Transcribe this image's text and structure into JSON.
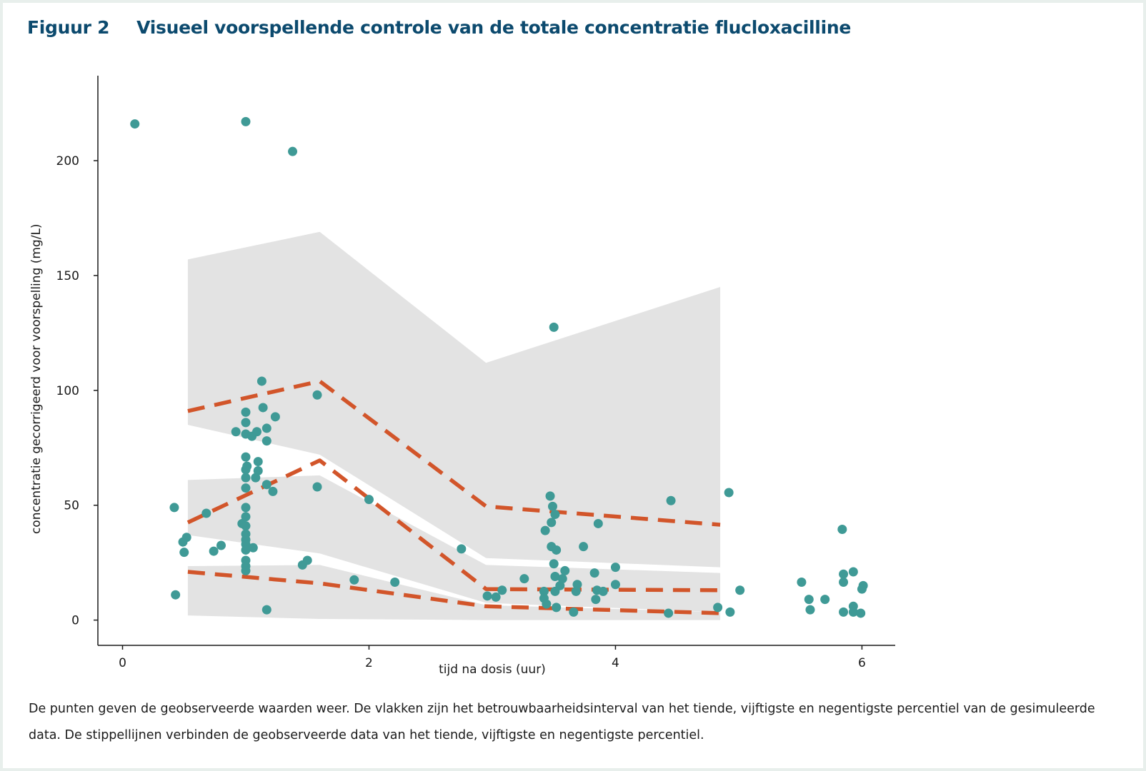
{
  "figure": {
    "label": "Figuur 2",
    "title": "Visueel voorspellende controle van de totale concentratie flucloxacilline",
    "caption": "De punten geven de geobserveerde waarden weer. De vlakken zijn het betrouwbaarheidsinterval van het tiende, vijftigste en negentigste percentiel van de gesimuleerde data. De stippellijnen verbinden de geobserveerde data van het tiende, vijftigste en negentigste percentiel."
  },
  "chart_data": {
    "type": "scatter",
    "xlabel": "tijd na dosis (uur)",
    "ylabel": "concentratie gecorrigeerd voor voorspelling (mg/L)",
    "xlim": [
      -0.2,
      6.27
    ],
    "ylim": [
      -11,
      237
    ],
    "xticks": [
      0,
      2,
      4,
      6
    ],
    "yticks": [
      0,
      50,
      100,
      150,
      200
    ],
    "grid": false,
    "colors": {
      "points": "#3f9a96",
      "lines": "#d2552a",
      "bands": "#e3e3e3"
    },
    "observed_points": [
      [
        0.1,
        216
      ],
      [
        0.42,
        49
      ],
      [
        0.43,
        11
      ],
      [
        0.49,
        34
      ],
      [
        0.5,
        29.5
      ],
      [
        0.52,
        36
      ],
      [
        0.68,
        46.5
      ],
      [
        0.74,
        30
      ],
      [
        0.8,
        32.5
      ],
      [
        0.92,
        82
      ],
      [
        0.97,
        42
      ],
      [
        1.0,
        217
      ],
      [
        1.0,
        90.5
      ],
      [
        1.0,
        86
      ],
      [
        1.0,
        81
      ],
      [
        1.0,
        71
      ],
      [
        1.0,
        65.5
      ],
      [
        1.0,
        62
      ],
      [
        1.0,
        57.5
      ],
      [
        1.0,
        49
      ],
      [
        1.0,
        45
      ],
      [
        1.0,
        41
      ],
      [
        1.0,
        37.5
      ],
      [
        1.0,
        35
      ],
      [
        1.0,
        33
      ],
      [
        1.0,
        30.5
      ],
      [
        1.0,
        26
      ],
      [
        1.0,
        23.5
      ],
      [
        1.0,
        21.5
      ],
      [
        1.01,
        67
      ],
      [
        1.05,
        80
      ],
      [
        1.06,
        31.5
      ],
      [
        1.09,
        82
      ],
      [
        1.1,
        69
      ],
      [
        1.1,
        65
      ],
      [
        1.08,
        62
      ],
      [
        1.13,
        104
      ],
      [
        1.14,
        92.5
      ],
      [
        1.17,
        4.5
      ],
      [
        1.17,
        78
      ],
      [
        1.17,
        83.5
      ],
      [
        1.17,
        59
      ],
      [
        1.22,
        56
      ],
      [
        1.24,
        88.5
      ],
      [
        1.38,
        204
      ],
      [
        1.46,
        24
      ],
      [
        1.5,
        26
      ],
      [
        1.58,
        98
      ],
      [
        1.58,
        58
      ],
      [
        1.88,
        17.5
      ],
      [
        2.0,
        52.5
      ],
      [
        2.21,
        16.5
      ],
      [
        2.75,
        31
      ],
      [
        2.96,
        10.5
      ],
      [
        3.03,
        10
      ],
      [
        3.08,
        13
      ],
      [
        3.26,
        18
      ],
      [
        3.42,
        12.5
      ],
      [
        3.42,
        9.5
      ],
      [
        3.43,
        39
      ],
      [
        3.44,
        7
      ],
      [
        3.47,
        54
      ],
      [
        3.48,
        42.5
      ],
      [
        3.48,
        32
      ],
      [
        3.49,
        49.5
      ],
      [
        3.5,
        24.5
      ],
      [
        3.51,
        19
      ],
      [
        3.51,
        46
      ],
      [
        3.51,
        12.5
      ],
      [
        3.52,
        30.5
      ],
      [
        3.52,
        5.5
      ],
      [
        3.5,
        127.5
      ],
      [
        3.55,
        15
      ],
      [
        3.57,
        18
      ],
      [
        3.59,
        21.5
      ],
      [
        3.66,
        3.5
      ],
      [
        3.68,
        12.5
      ],
      [
        3.69,
        15.5
      ],
      [
        3.74,
        32
      ],
      [
        3.83,
        20.5
      ],
      [
        3.84,
        9
      ],
      [
        3.85,
        13
      ],
      [
        3.86,
        42
      ],
      [
        3.9,
        12.5
      ],
      [
        4.0,
        23
      ],
      [
        4.0,
        15.5
      ],
      [
        4.43,
        3
      ],
      [
        4.45,
        52
      ],
      [
        4.83,
        5.5
      ],
      [
        4.92,
        55.5
      ],
      [
        4.93,
        3.5
      ],
      [
        5.01,
        13
      ],
      [
        5.51,
        16.5
      ],
      [
        5.57,
        9
      ],
      [
        5.58,
        4.5
      ],
      [
        5.7,
        9
      ],
      [
        5.84,
        39.5
      ],
      [
        5.85,
        20
      ],
      [
        5.85,
        16.5
      ],
      [
        5.85,
        3.5
      ],
      [
        5.93,
        21
      ],
      [
        5.93,
        6
      ],
      [
        5.93,
        3.5
      ],
      [
        5.99,
        3
      ],
      [
        6.0,
        13.5
      ],
      [
        6.01,
        15
      ]
    ],
    "simulated_ci_bands": [
      {
        "name": "p90",
        "x": [
          0.53,
          1.6,
          2.95,
          4.85
        ],
        "lower": [
          85,
          72,
          27,
          23
        ],
        "upper": [
          157,
          169,
          112,
          145
        ]
      },
      {
        "name": "p50",
        "x": [
          0.53,
          1.6,
          2.95,
          4.85
        ],
        "lower": [
          37,
          29,
          7.5,
          3.5
        ],
        "upper": [
          61,
          63,
          24,
          20.5
        ]
      },
      {
        "name": "p10",
        "x": [
          0.53,
          1.6,
          2.95,
          4.85
        ],
        "lower": [
          2,
          0.5,
          0,
          0
        ],
        "upper": [
          23.5,
          24,
          6.5,
          3.5
        ]
      }
    ],
    "observed_percentile_lines": [
      {
        "name": "p90",
        "x": [
          0.53,
          1.6,
          2.95,
          4.85
        ],
        "y": [
          91,
          104,
          49.5,
          41.5
        ]
      },
      {
        "name": "p50",
        "x": [
          0.53,
          1.6,
          2.95,
          4.85
        ],
        "y": [
          42.5,
          69.5,
          13.5,
          13
        ]
      },
      {
        "name": "p10",
        "x": [
          0.53,
          1.6,
          2.95,
          4.85
        ],
        "y": [
          21,
          16,
          6,
          3
        ]
      }
    ]
  }
}
